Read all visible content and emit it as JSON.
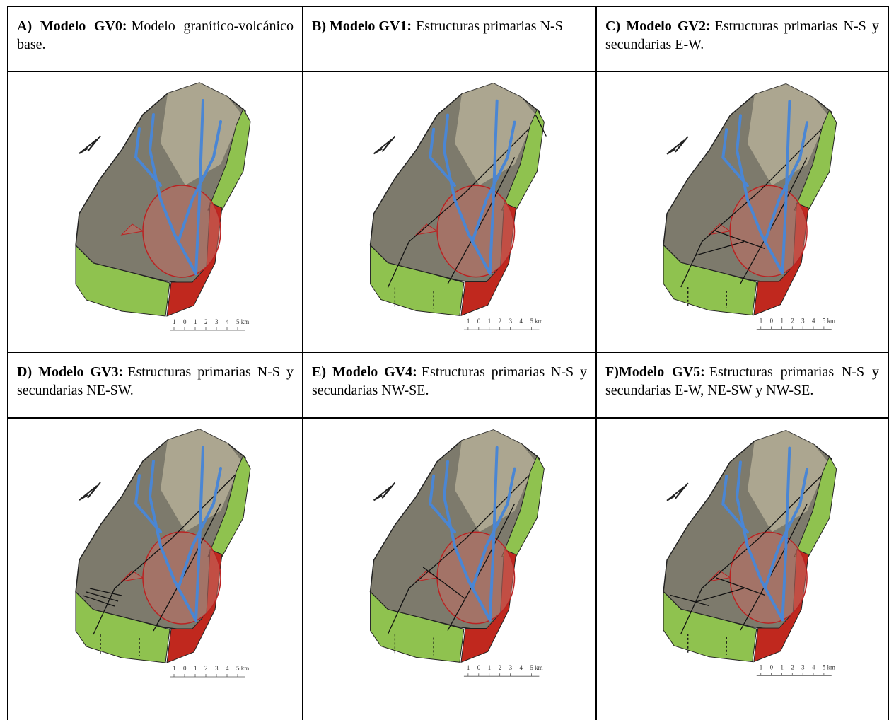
{
  "panels": [
    {
      "label": "A) Modelo GV0:",
      "text": "Modelo granítico-volcánico base."
    },
    {
      "label": "B) Modelo GV1:",
      "text": "Estructuras primarias N-S"
    },
    {
      "label": "C) Modelo GV2:",
      "text": "Estructuras primarias N-S y secundarias E-W."
    },
    {
      "label": "D) Modelo GV3:",
      "text": "Estructuras primarias N-S y secundarias NE-SW."
    },
    {
      "label": "E) Modelo GV4:",
      "text": "Estructuras primarias N-S y secundarias NW-SE."
    },
    {
      "label": "F)Modelo GV5:",
      "text": "Estructuras primarias N-S y secundarias E-W, NE-SW y NW-SE."
    }
  ],
  "scale_labels": [
    "1",
    "0",
    "1",
    "2",
    "3",
    "4",
    "5 km"
  ]
}
